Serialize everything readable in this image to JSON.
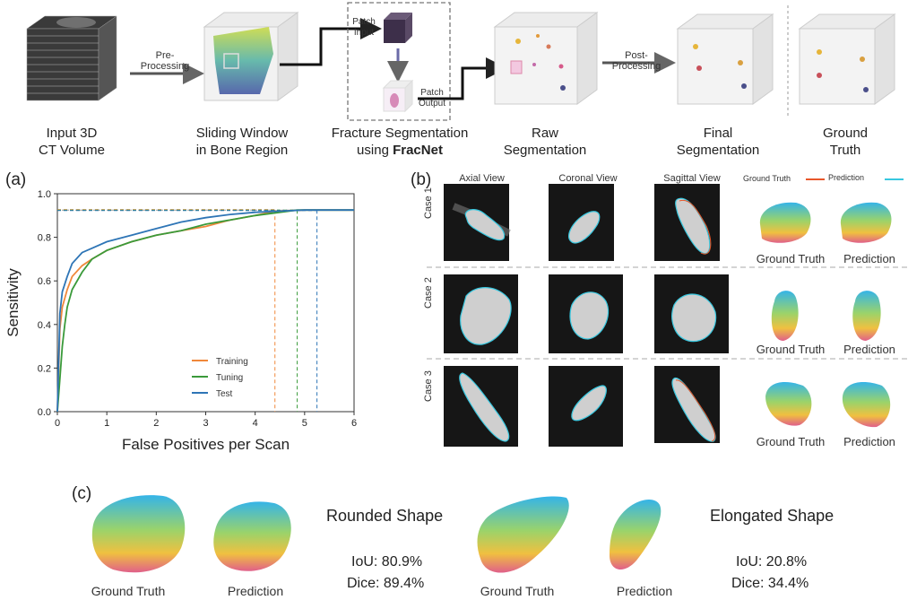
{
  "pipeline": {
    "arrow_pre": "Pre-\nProcessing",
    "arrow_pre_l1": "Pre-",
    "arrow_pre_l2": "Processing",
    "patch_input_l1": "Patch",
    "patch_input_l2": "Input",
    "patch_output_l1": "Patch",
    "patch_output_l2": "Output",
    "arrow_post_l1": "Post-",
    "arrow_post_l2": "Processing",
    "stage1_l1": "Input 3D",
    "stage1_l2": "CT Volume",
    "stage2_l1": "Sliding Window",
    "stage2_l2": "in Bone Region",
    "stage3_l1": "Fracture Segmentation",
    "stage3_l2_pre": "using ",
    "stage3_l2_bold": "FracNet",
    "stage4_l1": "Raw",
    "stage4_l2": "Segmentation",
    "stage5_l1": "Final",
    "stage5_l2": "Segmentation",
    "stage6_l1": "Ground",
    "stage6_l2": "Truth"
  },
  "panel_a": {
    "label": "(a)",
    "xlabel": "False Positives per Scan",
    "ylabel": "Sensitivity",
    "legend": [
      "Training",
      "Tuning",
      "Test"
    ]
  },
  "chart_data": {
    "type": "line",
    "xlabel": "False Positives per Scan",
    "ylabel": "Sensitivity",
    "xlim": [
      0,
      6
    ],
    "ylim": [
      0,
      1.0
    ],
    "xticks": [
      "0",
      "1",
      "2",
      "3",
      "4",
      "5",
      "6"
    ],
    "yticks": [
      "0.0",
      "0.2",
      "0.4",
      "0.6",
      "0.8",
      "1.0"
    ],
    "legend_position": "bottom-center",
    "series": [
      {
        "name": "Training",
        "color": "#f0883a",
        "x": [
          0,
          0.05,
          0.1,
          0.2,
          0.3,
          0.5,
          0.7,
          1.0,
          1.5,
          2.0,
          2.5,
          3.0,
          3.5,
          4.0,
          4.4,
          5.0,
          6.0
        ],
        "y": [
          0.0,
          0.38,
          0.48,
          0.56,
          0.62,
          0.67,
          0.7,
          0.74,
          0.78,
          0.81,
          0.83,
          0.85,
          0.88,
          0.9,
          0.92,
          0.925,
          0.925
        ],
        "operating_point": 4.4
      },
      {
        "name": "Tuning",
        "color": "#3a9a3a",
        "x": [
          0,
          0.05,
          0.1,
          0.15,
          0.2,
          0.3,
          0.5,
          0.7,
          1.0,
          1.5,
          2.0,
          2.5,
          3.0,
          3.5,
          4.0,
          4.5,
          4.85,
          6.0
        ],
        "y": [
          0.0,
          0.15,
          0.3,
          0.4,
          0.48,
          0.56,
          0.64,
          0.7,
          0.74,
          0.78,
          0.81,
          0.83,
          0.86,
          0.88,
          0.9,
          0.915,
          0.925,
          0.925
        ],
        "operating_point": 4.85
      },
      {
        "name": "Test",
        "color": "#2e75b6",
        "x": [
          0,
          0.05,
          0.1,
          0.2,
          0.3,
          0.5,
          0.7,
          1.0,
          1.5,
          2.0,
          2.5,
          3.0,
          3.5,
          4.0,
          4.5,
          5.0,
          5.25,
          6.0
        ],
        "y": [
          0.0,
          0.45,
          0.55,
          0.62,
          0.68,
          0.73,
          0.75,
          0.78,
          0.81,
          0.84,
          0.87,
          0.89,
          0.905,
          0.915,
          0.92,
          0.925,
          0.925,
          0.925
        ],
        "operating_point": 5.25
      }
    ],
    "reference_line": 0.925
  },
  "panel_b": {
    "label": "(b)",
    "views": [
      "Axial View",
      "Coronal View",
      "Sagittal View"
    ],
    "legend_gt": "Ground Truth",
    "legend_pred": "Prediction",
    "cases": [
      "Case 1",
      "Case 2",
      "Case 3"
    ],
    "gt_caption": "Ground Truth",
    "pred_caption": "Prediction"
  },
  "panel_c": {
    "label": "(c)",
    "rounded": {
      "title": "Rounded Shape",
      "iou": "IoU: 80.9%",
      "dice": "Dice: 89.4%"
    },
    "elongated": {
      "title": "Elongated Shape",
      "iou": "IoU: 20.8%",
      "dice": "Dice: 34.4%"
    },
    "gt_caption": "Ground Truth",
    "pred_caption": "Prediction"
  },
  "colors": {
    "gt_contour": "#e8572a",
    "pred_contour": "#38c8e0"
  }
}
